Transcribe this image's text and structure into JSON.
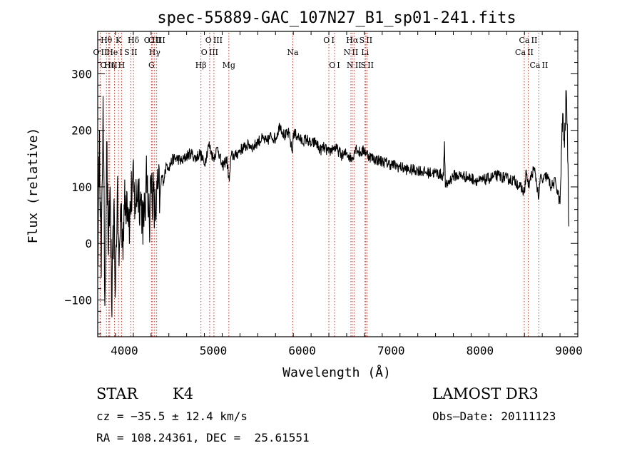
{
  "chart_data": {
    "type": "line",
    "title": "spec-55889-GAC_107N27_B1_sp01-241.fits",
    "xlabel": "Wavelength (Å)",
    "ylabel": "Flux (relative)",
    "xlim": [
      3700,
      9100
    ],
    "ylim": [
      -165,
      375
    ],
    "xticks": [
      4000,
      5000,
      6000,
      7000,
      8000,
      9000
    ],
    "yticks": [
      -100,
      0,
      100,
      200,
      300
    ],
    "ytick_labels": [
      "−100",
      "0",
      "100",
      "200",
      "300"
    ],
    "grid": false,
    "series": [
      {
        "name": "spectrum",
        "x": [
          3700,
          3720,
          3740,
          3760,
          3780,
          3800,
          3820,
          3840,
          3860,
          3880,
          3900,
          3920,
          3940,
          3960,
          3980,
          4000,
          4030,
          4060,
          4090,
          4120,
          4150,
          4180,
          4200,
          4220,
          4240,
          4260,
          4280,
          4300,
          4320,
          4340,
          4360,
          4380,
          4400,
          4420,
          4440,
          4460,
          4480,
          4500,
          4550,
          4600,
          4650,
          4700,
          4750,
          4800,
          4850,
          4900,
          4950,
          5000,
          5050,
          5100,
          5150,
          5180,
          5200,
          5250,
          5300,
          5350,
          5400,
          5450,
          5500,
          5550,
          5600,
          5650,
          5700,
          5750,
          5800,
          5850,
          5890,
          5900,
          5950,
          6000,
          6050,
          6100,
          6150,
          6200,
          6250,
          6300,
          6350,
          6400,
          6450,
          6500,
          6550,
          6563,
          6600,
          6650,
          6700,
          6750,
          6800,
          6900,
          7000,
          7100,
          7200,
          7300,
          7400,
          7500,
          7590,
          7600,
          7610,
          7700,
          7800,
          7900,
          8000,
          8100,
          8200,
          8300,
          8400,
          8450,
          8500,
          8520,
          8542,
          8560,
          8600,
          8620,
          8662,
          8680,
          8700,
          8750,
          8800,
          8850,
          8900,
          8930,
          8950,
          8970,
          8990,
          9000
        ],
        "y": [
          -40,
          200,
          -60,
          260,
          -110,
          180,
          -20,
          100,
          -130,
          60,
          -80,
          90,
          -40,
          70,
          10,
          60,
          90,
          40,
          110,
          70,
          100,
          80,
          60,
          30,
          90,
          120,
          40,
          110,
          90,
          50,
          70,
          100,
          80,
          120,
          110,
          130,
          140,
          135,
          150,
          150,
          145,
          155,
          160,
          150,
          160,
          140,
          175,
          150,
          170,
          135,
          150,
          110,
          155,
          155,
          165,
          170,
          175,
          170,
          180,
          185,
          180,
          190,
          185,
          210,
          190,
          195,
          160,
          195,
          190,
          180,
          185,
          175,
          180,
          165,
          170,
          160,
          170,
          165,
          155,
          160,
          150,
          150,
          170,
          160,
          165,
          155,
          150,
          145,
          140,
          135,
          130,
          130,
          125,
          125,
          120,
          180,
          100,
          120,
          120,
          115,
          110,
          115,
          120,
          115,
          110,
          100,
          90,
          130,
          100,
          110,
          130,
          125,
          80,
          120,
          110,
          120,
          100,
          110,
          70,
          230,
          170,
          270,
          140,
          30
        ]
      }
    ],
    "lines": [
      {
        "label": "O II",
        "wl": 3727,
        "row": 2
      },
      {
        "label": "Hθ",
        "wl": 3798,
        "row": 1
      },
      {
        "label": "O III",
        "wl": 3825,
        "row": 3
      },
      {
        "label": "Hη",
        "wl": 3835,
        "row": 3
      },
      {
        "label": "He I",
        "wl": 3889,
        "row": 2
      },
      {
        "label": "K",
        "wl": 3934,
        "row": 1
      },
      {
        "label": "H",
        "wl": 3968,
        "row": 3
      },
      {
        "label": "S II",
        "wl": 4072,
        "row": 2
      },
      {
        "label": "Hδ",
        "wl": 4102,
        "row": 1
      },
      {
        "label": "O III",
        "wl": 4317,
        "row": 1
      },
      {
        "label": "G",
        "wl": 4305,
        "row": 3
      },
      {
        "label": "Hγ",
        "wl": 4340,
        "row": 2
      },
      {
        "label": "O III",
        "wl": 4363,
        "row": 1
      },
      {
        "label": "Hβ",
        "wl": 4861,
        "row": 3
      },
      {
        "label": "O III",
        "wl": 4959,
        "row": 2
      },
      {
        "label": "O III",
        "wl": 5007,
        "row": 1
      },
      {
        "label": "Mg",
        "wl": 5175,
        "row": 3
      },
      {
        "label": "Na",
        "wl": 5894,
        "row": 2
      },
      {
        "label": "O I",
        "wl": 6300,
        "row": 1
      },
      {
        "label": "O I",
        "wl": 6364,
        "row": 3
      },
      {
        "label": "N II",
        "wl": 6548,
        "row": 2
      },
      {
        "label": "Hα",
        "wl": 6563,
        "row": 1
      },
      {
        "label": "N II",
        "wl": 6583,
        "row": 3
      },
      {
        "label": "Li",
        "wl": 6707,
        "row": 2
      },
      {
        "label": "S II",
        "wl": 6716,
        "row": 1
      },
      {
        "label": "S II",
        "wl": 6731,
        "row": 3
      },
      {
        "label": "Ca II",
        "wl": 8498,
        "row": 2
      },
      {
        "label": "Ca II",
        "wl": 8542,
        "row": 1
      },
      {
        "label": "Ca II",
        "wl": 8662,
        "row": 3
      }
    ]
  },
  "info": {
    "class": "STAR",
    "subclass": "K4",
    "survey": "LAMOST DR3",
    "cz": "cz = −35.5 ± 12.4 km/s",
    "obs_date": "Obs–Date: 20111123",
    "coords": "RA = 108.24361, DEC =  25.61551"
  },
  "colors": {
    "axis": "#000000",
    "line": "#000000",
    "marker": "#c0392b"
  }
}
